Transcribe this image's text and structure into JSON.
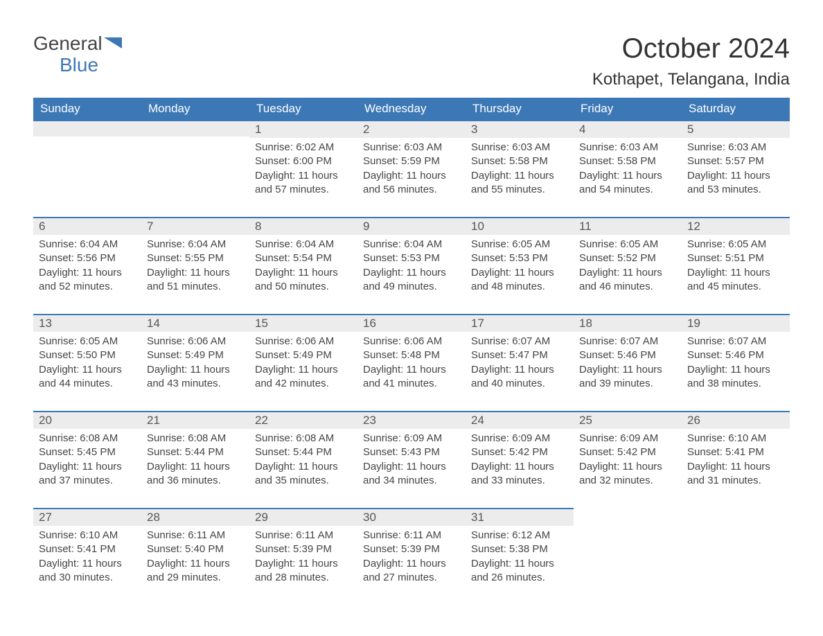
{
  "brand": {
    "text1": "General",
    "text2": "Blue"
  },
  "title": "October 2024",
  "location": "Kothapet, Telangana, India",
  "colors": {
    "header_bg": "#3d78b6",
    "header_fg": "#ffffff",
    "daynum_bg": "#ececec",
    "daynum_border": "#3d78b6",
    "text": "#444444",
    "page_bg": "#ffffff"
  },
  "weekdays": [
    "Sunday",
    "Monday",
    "Tuesday",
    "Wednesday",
    "Thursday",
    "Friday",
    "Saturday"
  ],
  "weeks": [
    [
      null,
      null,
      {
        "n": "1",
        "sr": "6:02 AM",
        "ss": "6:00 PM",
        "dl": "11 hours and 57 minutes."
      },
      {
        "n": "2",
        "sr": "6:03 AM",
        "ss": "5:59 PM",
        "dl": "11 hours and 56 minutes."
      },
      {
        "n": "3",
        "sr": "6:03 AM",
        "ss": "5:58 PM",
        "dl": "11 hours and 55 minutes."
      },
      {
        "n": "4",
        "sr": "6:03 AM",
        "ss": "5:58 PM",
        "dl": "11 hours and 54 minutes."
      },
      {
        "n": "5",
        "sr": "6:03 AM",
        "ss": "5:57 PM",
        "dl": "11 hours and 53 minutes."
      }
    ],
    [
      {
        "n": "6",
        "sr": "6:04 AM",
        "ss": "5:56 PM",
        "dl": "11 hours and 52 minutes."
      },
      {
        "n": "7",
        "sr": "6:04 AM",
        "ss": "5:55 PM",
        "dl": "11 hours and 51 minutes."
      },
      {
        "n": "8",
        "sr": "6:04 AM",
        "ss": "5:54 PM",
        "dl": "11 hours and 50 minutes."
      },
      {
        "n": "9",
        "sr": "6:04 AM",
        "ss": "5:53 PM",
        "dl": "11 hours and 49 minutes."
      },
      {
        "n": "10",
        "sr": "6:05 AM",
        "ss": "5:53 PM",
        "dl": "11 hours and 48 minutes."
      },
      {
        "n": "11",
        "sr": "6:05 AM",
        "ss": "5:52 PM",
        "dl": "11 hours and 46 minutes."
      },
      {
        "n": "12",
        "sr": "6:05 AM",
        "ss": "5:51 PM",
        "dl": "11 hours and 45 minutes."
      }
    ],
    [
      {
        "n": "13",
        "sr": "6:05 AM",
        "ss": "5:50 PM",
        "dl": "11 hours and 44 minutes."
      },
      {
        "n": "14",
        "sr": "6:06 AM",
        "ss": "5:49 PM",
        "dl": "11 hours and 43 minutes."
      },
      {
        "n": "15",
        "sr": "6:06 AM",
        "ss": "5:49 PM",
        "dl": "11 hours and 42 minutes."
      },
      {
        "n": "16",
        "sr": "6:06 AM",
        "ss": "5:48 PM",
        "dl": "11 hours and 41 minutes."
      },
      {
        "n": "17",
        "sr": "6:07 AM",
        "ss": "5:47 PM",
        "dl": "11 hours and 40 minutes."
      },
      {
        "n": "18",
        "sr": "6:07 AM",
        "ss": "5:46 PM",
        "dl": "11 hours and 39 minutes."
      },
      {
        "n": "19",
        "sr": "6:07 AM",
        "ss": "5:46 PM",
        "dl": "11 hours and 38 minutes."
      }
    ],
    [
      {
        "n": "20",
        "sr": "6:08 AM",
        "ss": "5:45 PM",
        "dl": "11 hours and 37 minutes."
      },
      {
        "n": "21",
        "sr": "6:08 AM",
        "ss": "5:44 PM",
        "dl": "11 hours and 36 minutes."
      },
      {
        "n": "22",
        "sr": "6:08 AM",
        "ss": "5:44 PM",
        "dl": "11 hours and 35 minutes."
      },
      {
        "n": "23",
        "sr": "6:09 AM",
        "ss": "5:43 PM",
        "dl": "11 hours and 34 minutes."
      },
      {
        "n": "24",
        "sr": "6:09 AM",
        "ss": "5:42 PM",
        "dl": "11 hours and 33 minutes."
      },
      {
        "n": "25",
        "sr": "6:09 AM",
        "ss": "5:42 PM",
        "dl": "11 hours and 32 minutes."
      },
      {
        "n": "26",
        "sr": "6:10 AM",
        "ss": "5:41 PM",
        "dl": "11 hours and 31 minutes."
      }
    ],
    [
      {
        "n": "27",
        "sr": "6:10 AM",
        "ss": "5:41 PM",
        "dl": "11 hours and 30 minutes."
      },
      {
        "n": "28",
        "sr": "6:11 AM",
        "ss": "5:40 PM",
        "dl": "11 hours and 29 minutes."
      },
      {
        "n": "29",
        "sr": "6:11 AM",
        "ss": "5:39 PM",
        "dl": "11 hours and 28 minutes."
      },
      {
        "n": "30",
        "sr": "6:11 AM",
        "ss": "5:39 PM",
        "dl": "11 hours and 27 minutes."
      },
      {
        "n": "31",
        "sr": "6:12 AM",
        "ss": "5:38 PM",
        "dl": "11 hours and 26 minutes."
      },
      null,
      null
    ]
  ],
  "labels": {
    "sunrise": "Sunrise:",
    "sunset": "Sunset:",
    "daylight": "Daylight:"
  }
}
